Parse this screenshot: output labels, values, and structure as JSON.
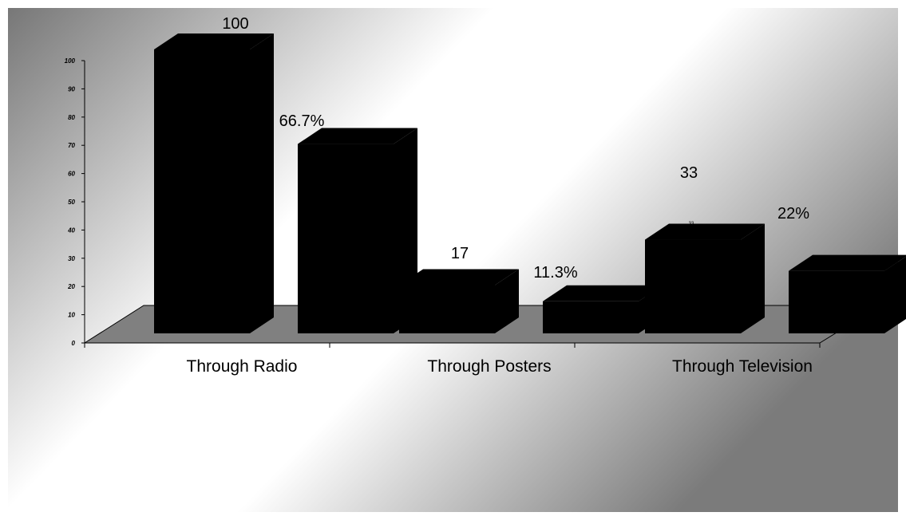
{
  "chart_data": {
    "type": "bar",
    "title": "",
    "xlabel": "",
    "ylabel": "",
    "categories": [
      "Through Radio",
      "Through Posters",
      "Through Television"
    ],
    "series": [
      {
        "values": [
          100,
          17,
          33
        ],
        "labels": [
          "100",
          "17",
          "33"
        ]
      },
      {
        "values": [
          66.7,
          11.3,
          22
        ],
        "labels": [
          "66.7%",
          "11.3%",
          "22%"
        ]
      }
    ],
    "small_value_label": "33",
    "ylim": [
      0,
      100
    ],
    "yticks": [
      "0",
      "10",
      "20",
      "30",
      "40",
      "50",
      "60",
      "70",
      "80",
      "90",
      "100"
    ],
    "grid": false,
    "legend": "none",
    "three_d": true,
    "colors": {
      "bars": "#000000",
      "floor": "#808080",
      "background_dark": "#6f6f6f",
      "background_light": "#ffffff"
    }
  }
}
